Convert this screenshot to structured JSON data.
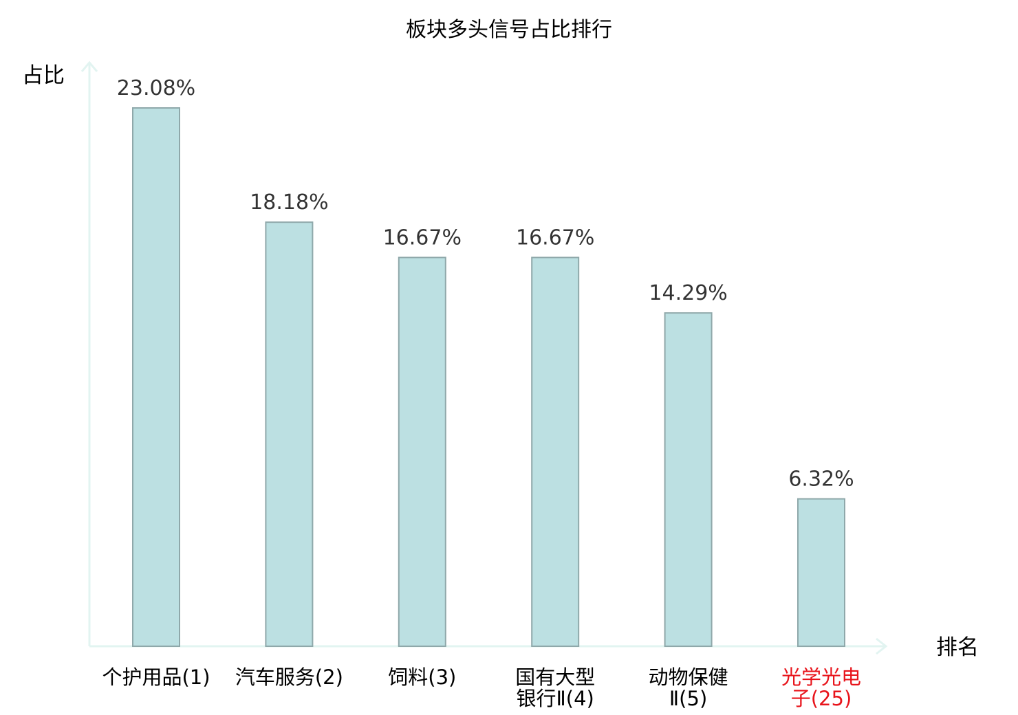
{
  "colors": {
    "bar_fill": "#bce0e2",
    "bar_stroke": "#8fa8aa",
    "axis": "#e2f4f1",
    "highlight": "#e8141b",
    "text": "#333333"
  },
  "chart_data": {
    "type": "bar",
    "title": "板块多头信号占比排行",
    "xlabel": "排名",
    "ylabel": "占比",
    "ylim": [
      0,
      25
    ],
    "grid": false,
    "categories": [
      {
        "line1": "个护用品(1)",
        "line2": ""
      },
      {
        "line1": "汽车服务(2)",
        "line2": ""
      },
      {
        "line1": "饲料(3)",
        "line2": ""
      },
      {
        "line1": "国有大型",
        "line2": "银行Ⅱ(4)"
      },
      {
        "line1": "动物保健",
        "line2": "Ⅱ(5)"
      },
      {
        "line1": "光学光电",
        "line2": "子(25)"
      }
    ],
    "values": [
      23.08,
      18.18,
      16.67,
      16.67,
      14.29,
      6.32
    ],
    "value_labels": [
      "23.08%",
      "18.18%",
      "16.67%",
      "16.67%",
      "14.29%",
      "6.32%"
    ],
    "highlighted": [
      false,
      false,
      false,
      false,
      false,
      true
    ]
  }
}
